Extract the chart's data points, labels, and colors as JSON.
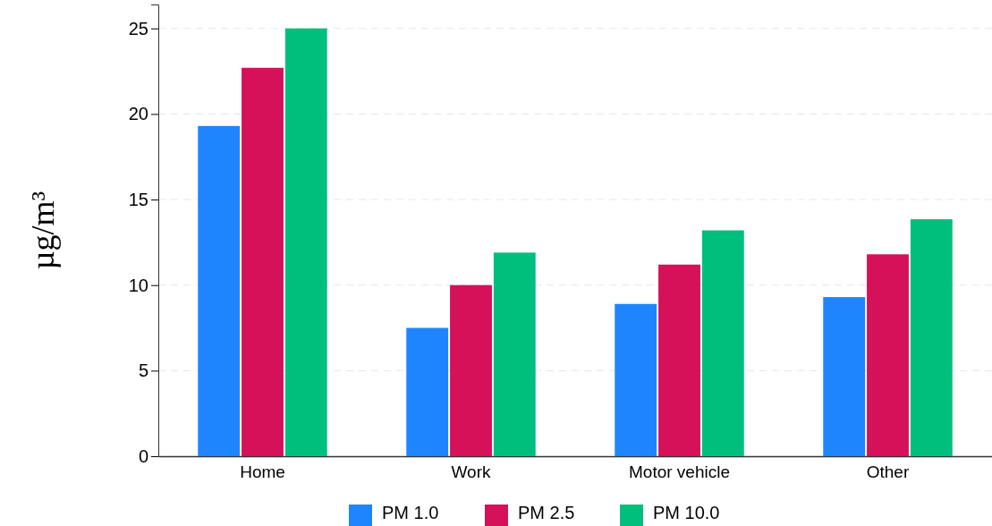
{
  "chart_data": {
    "type": "bar",
    "ylabel": "µg/m³",
    "categories": [
      "Home",
      "Work",
      "Motor vehicle",
      "Other"
    ],
    "series": [
      {
        "name": "PM 1.0",
        "color": "#1e85ff",
        "values": [
          19.3,
          7.5,
          8.9,
          9.3
        ]
      },
      {
        "name": "PM 2.5",
        "color": "#d41159",
        "values": [
          22.7,
          10.0,
          11.2,
          11.8
        ]
      },
      {
        "name": "PM 10.0",
        "color": "#00bf7d",
        "values": [
          25.0,
          11.9,
          13.2,
          13.85
        ]
      }
    ],
    "ylim": [
      0,
      26.4
    ],
    "yticks": [
      0,
      5,
      10,
      15,
      20,
      25
    ],
    "grid": "y",
    "legend": "bottom"
  }
}
